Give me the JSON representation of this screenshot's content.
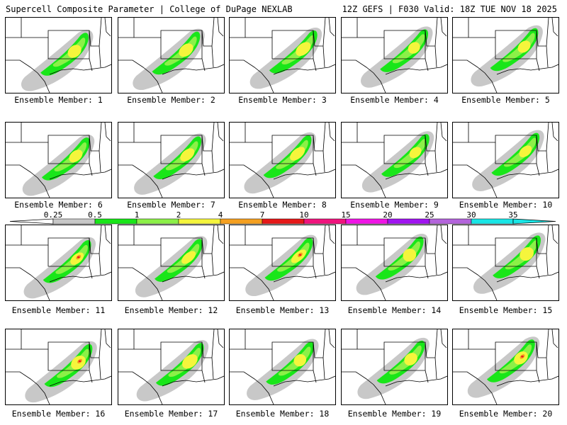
{
  "header": {
    "left": "Supercell Composite Parameter | College of DuPage NEXLAB",
    "right": "12Z GEFS | F030 Valid: 18Z TUE NOV 18 2025"
  },
  "legend": {
    "thresholds": [
      "0.25",
      "0.5",
      "1",
      "2",
      "4",
      "7",
      "10",
      "15",
      "20",
      "25",
      "30",
      "35"
    ],
    "colors": [
      "#c8c8c8",
      "#19e619",
      "#8cf048",
      "#f5f53c",
      "#f5a020",
      "#e61919",
      "#f0147d",
      "#f014e6",
      "#a014f0",
      "#b464dc",
      "#19e6e6"
    ]
  },
  "panels": [
    {
      "label": "Ensemble Member: 1"
    },
    {
      "label": "Ensemble Member: 2"
    },
    {
      "label": "Ensemble Member: 3"
    },
    {
      "label": "Ensemble Member: 4"
    },
    {
      "label": "Ensemble Member: 5"
    },
    {
      "label": "Ensemble Member: 6"
    },
    {
      "label": "Ensemble Member: 7"
    },
    {
      "label": "Ensemble Member: 8"
    },
    {
      "label": "Ensemble Member: 9"
    },
    {
      "label": "Ensemble Member: 10"
    },
    {
      "label": "Ensemble Member: 11"
    },
    {
      "label": "Ensemble Member: 12"
    },
    {
      "label": "Ensemble Member: 13"
    },
    {
      "label": "Ensemble Member: 14"
    },
    {
      "label": "Ensemble Member: 15"
    },
    {
      "label": "Ensemble Member: 16"
    },
    {
      "label": "Ensemble Member: 17"
    },
    {
      "label": "Ensemble Member: 18"
    },
    {
      "label": "Ensemble Member: 19"
    },
    {
      "label": "Ensemble Member: 20"
    }
  ]
}
